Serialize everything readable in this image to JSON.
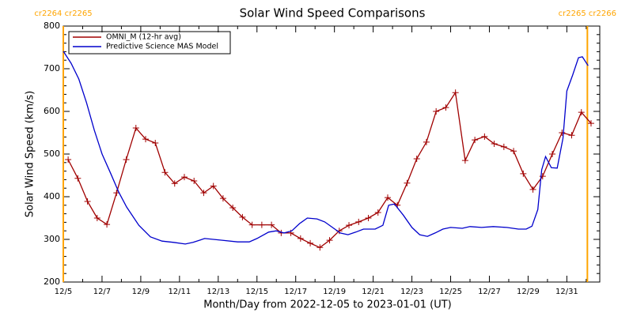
{
  "chart_data": {
    "type": "line",
    "title": "Solar Wind Speed Comparisons",
    "x_label": "Month/Day from 2022-12-05 to 2023-01-01 (UT)",
    "y_label": "Solar Wind Speed (km/s)",
    "xlim": [
      0,
      27.7
    ],
    "ylim": [
      200,
      800
    ],
    "xticks": [
      {
        "value": 0,
        "label": "12/5"
      },
      {
        "value": 2,
        "label": "12/7"
      },
      {
        "value": 4,
        "label": "12/9"
      },
      {
        "value": 6,
        "label": "12/11"
      },
      {
        "value": 8,
        "label": "12/13"
      },
      {
        "value": 10,
        "label": "12/15"
      },
      {
        "value": 12,
        "label": "12/17"
      },
      {
        "value": 14,
        "label": "12/19"
      },
      {
        "value": 16,
        "label": "12/21"
      },
      {
        "value": 18,
        "label": "12/23"
      },
      {
        "value": 20,
        "label": "12/25"
      },
      {
        "value": 22,
        "label": "12/27"
      },
      {
        "value": 24,
        "label": "12/29"
      },
      {
        "value": 26,
        "label": "12/31"
      }
    ],
    "xminor_ticks": [
      1,
      3,
      5,
      7,
      9,
      11,
      13,
      15,
      17,
      19,
      21,
      23,
      25,
      27
    ],
    "yticks": [
      200,
      300,
      400,
      500,
      600,
      700,
      800
    ],
    "yminor_ticks": [
      220,
      240,
      260,
      280,
      320,
      340,
      360,
      380,
      420,
      440,
      460,
      480,
      520,
      540,
      560,
      580,
      620,
      640,
      660,
      680,
      720,
      740,
      760,
      780
    ],
    "rotation_boundaries": {
      "color": "#ffa500",
      "items": [
        {
          "x": 0,
          "label": "cr2264 cr2265"
        },
        {
          "x": 27.06,
          "label": "cr2265 cr2266"
        }
      ]
    },
    "series": [
      {
        "name": "OMNI_M (12-hr avg)",
        "color": "#a00000",
        "marker": "+",
        "x": [
          0.25,
          0.75,
          1.25,
          1.75,
          2.25,
          2.75,
          3.25,
          3.75,
          4.25,
          4.75,
          5.25,
          5.75,
          6.25,
          6.75,
          7.25,
          7.75,
          8.25,
          8.75,
          9.25,
          9.75,
          10.25,
          10.75,
          11.25,
          11.75,
          12.25,
          12.75,
          13.25,
          13.75,
          14.25,
          14.75,
          15.25,
          15.75,
          16.25,
          16.75,
          17.25,
          17.75,
          18.25,
          18.75,
          19.25,
          19.75,
          20.25,
          20.75,
          21.25,
          21.75,
          22.25,
          22.75,
          23.25,
          23.75,
          24.25,
          24.75,
          25.25,
          25.75,
          26.25,
          26.75,
          27.25
        ],
        "values": [
          487,
          443,
          389,
          350,
          335,
          409,
          487,
          561,
          535,
          526,
          457,
          431,
          446,
          437,
          409,
          425,
          396,
          374,
          352,
          334,
          334,
          334,
          315,
          315,
          302,
          291,
          281,
          298,
          320,
          333,
          341,
          350,
          363,
          398,
          380,
          432,
          489,
          528,
          600,
          609,
          644,
          485,
          533,
          541,
          524,
          517,
          507,
          454,
          417,
          448,
          500,
          550,
          544,
          598,
          572
        ]
      },
      {
        "name": "Predictive Science MAS Model",
        "color": "#0000cc",
        "marker": "none",
        "x": [
          0,
          0.4,
          0.8,
          1.2,
          1.6,
          2.0,
          2.45,
          2.86,
          3.27,
          3.9,
          4.5,
          5.1,
          5.7,
          6.3,
          6.7,
          7.3,
          8.2,
          9.0,
          9.6,
          10.0,
          10.6,
          11.0,
          11.4,
          11.8,
          12.2,
          12.6,
          13.1,
          13.5,
          13.9,
          14.3,
          14.7,
          15.1,
          15.5,
          16.1,
          16.5,
          16.8,
          17.1,
          17.55,
          18.0,
          18.4,
          18.8,
          19.2,
          19.6,
          20.0,
          20.6,
          21.0,
          21.6,
          22.2,
          22.9,
          23.5,
          23.9,
          24.2,
          24.5,
          24.7,
          24.9,
          25.2,
          25.5,
          25.8,
          26.0,
          26.3,
          26.6,
          26.8,
          27.1
        ],
        "values": [
          741,
          713,
          676,
          620,
          556,
          500,
          454,
          411,
          376,
          333,
          306,
          296,
          293,
          289,
          293,
          302,
          298,
          294,
          294,
          302,
          317,
          320,
          315,
          320,
          337,
          350,
          348,
          341,
          328,
          315,
          311,
          317,
          324,
          324,
          333,
          380,
          383,
          357,
          328,
          311,
          307,
          315,
          324,
          328,
          326,
          330,
          328,
          330,
          328,
          324,
          324,
          331,
          370,
          463,
          494,
          468,
          467,
          537,
          648,
          685,
          726,
          728,
          707
        ]
      }
    ]
  }
}
